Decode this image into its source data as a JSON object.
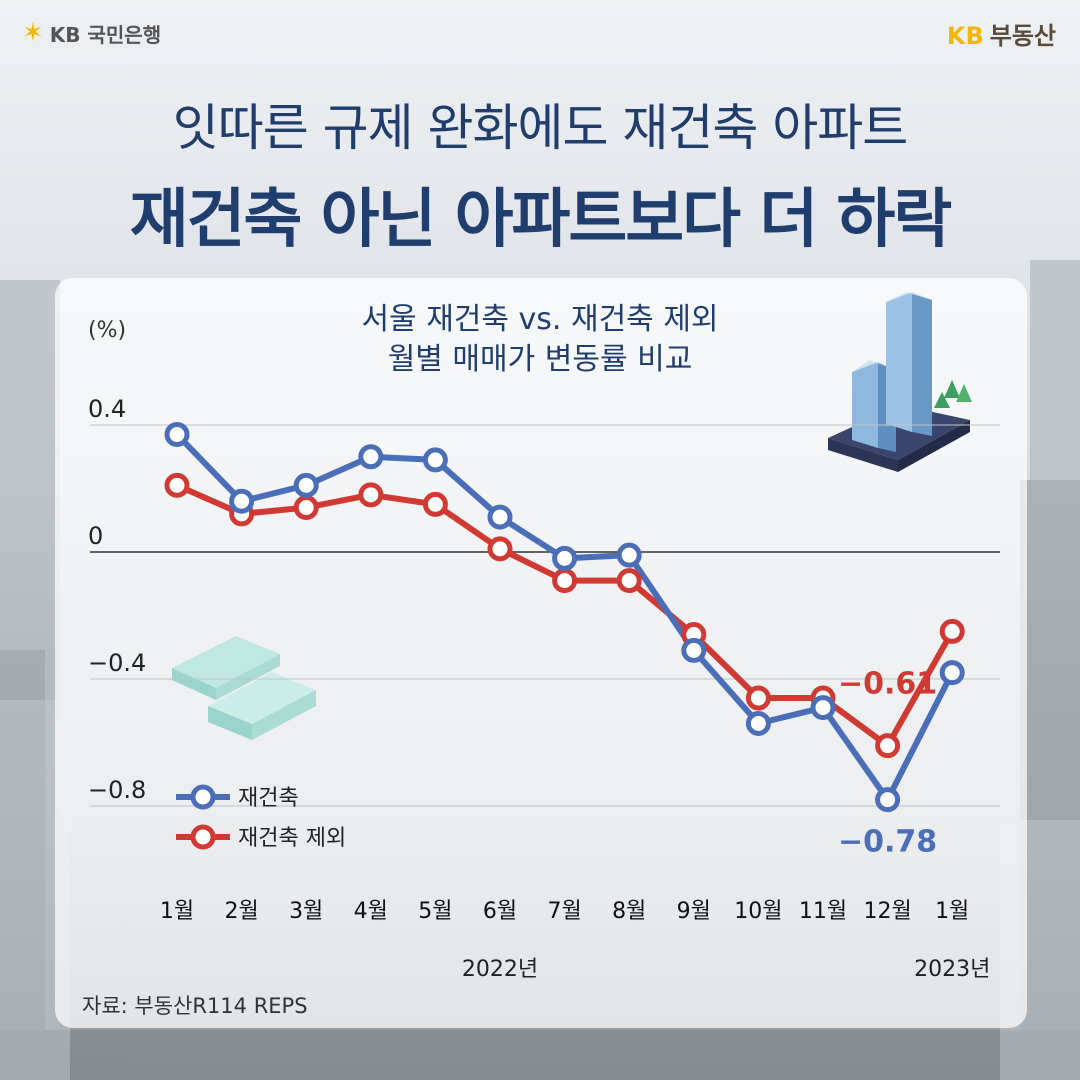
{
  "header": {
    "left_logo": "KB 국민은행",
    "right_logo_kb": "KB",
    "right_logo_text": "부동산"
  },
  "title_line1": "잇따른 규제 완화에도 재건축 아파트",
  "title_line2": "재건축 아닌 아파트보다 더 하락",
  "source": "자료: 부동산R114 REPS",
  "colors": {
    "rebuild": "#4a6fb8",
    "non_rebuild": "#d03a33",
    "title": "#1f3e6e"
  },
  "chart_data": {
    "type": "line",
    "title_line1": "서울 재건축 vs. 재건축 제외",
    "title_line2": "월별 매매가 변동률 비교",
    "ylabel": "(%)",
    "ylim": [
      -0.8,
      0.4
    ],
    "yticks": [
      0.4,
      0,
      -0.4,
      -0.8
    ],
    "ytick_labels": [
      "0.4",
      "0",
      "−0.4",
      "−0.8"
    ],
    "categories": [
      "1월",
      "2월",
      "3월",
      "4월",
      "5월",
      "6월",
      "7월",
      "8월",
      "9월",
      "10월",
      "11월",
      "12월",
      "1월"
    ],
    "year_labels": [
      {
        "label": "2022년",
        "at_index": 5
      },
      {
        "label": "2023년",
        "at_index": 12
      }
    ],
    "series": [
      {
        "name": "재건축",
        "color": "#4a6fb8",
        "values": [
          0.37,
          0.16,
          0.21,
          0.3,
          0.29,
          0.11,
          -0.02,
          -0.01,
          -0.31,
          -0.54,
          -0.49,
          -0.78,
          -0.38
        ]
      },
      {
        "name": "재건축 제외",
        "color": "#d03a33",
        "values": [
          0.21,
          0.12,
          0.14,
          0.18,
          0.15,
          0.01,
          -0.09,
          -0.09,
          -0.26,
          -0.46,
          -0.46,
          -0.61,
          -0.25
        ]
      }
    ],
    "annotations": [
      {
        "text": "−0.61",
        "series": 1,
        "index": 11,
        "color": "#d03a33"
      },
      {
        "text": "−0.78",
        "series": 0,
        "index": 11,
        "color": "#4a6fb8"
      }
    ],
    "legend_position": "bottom-left"
  }
}
